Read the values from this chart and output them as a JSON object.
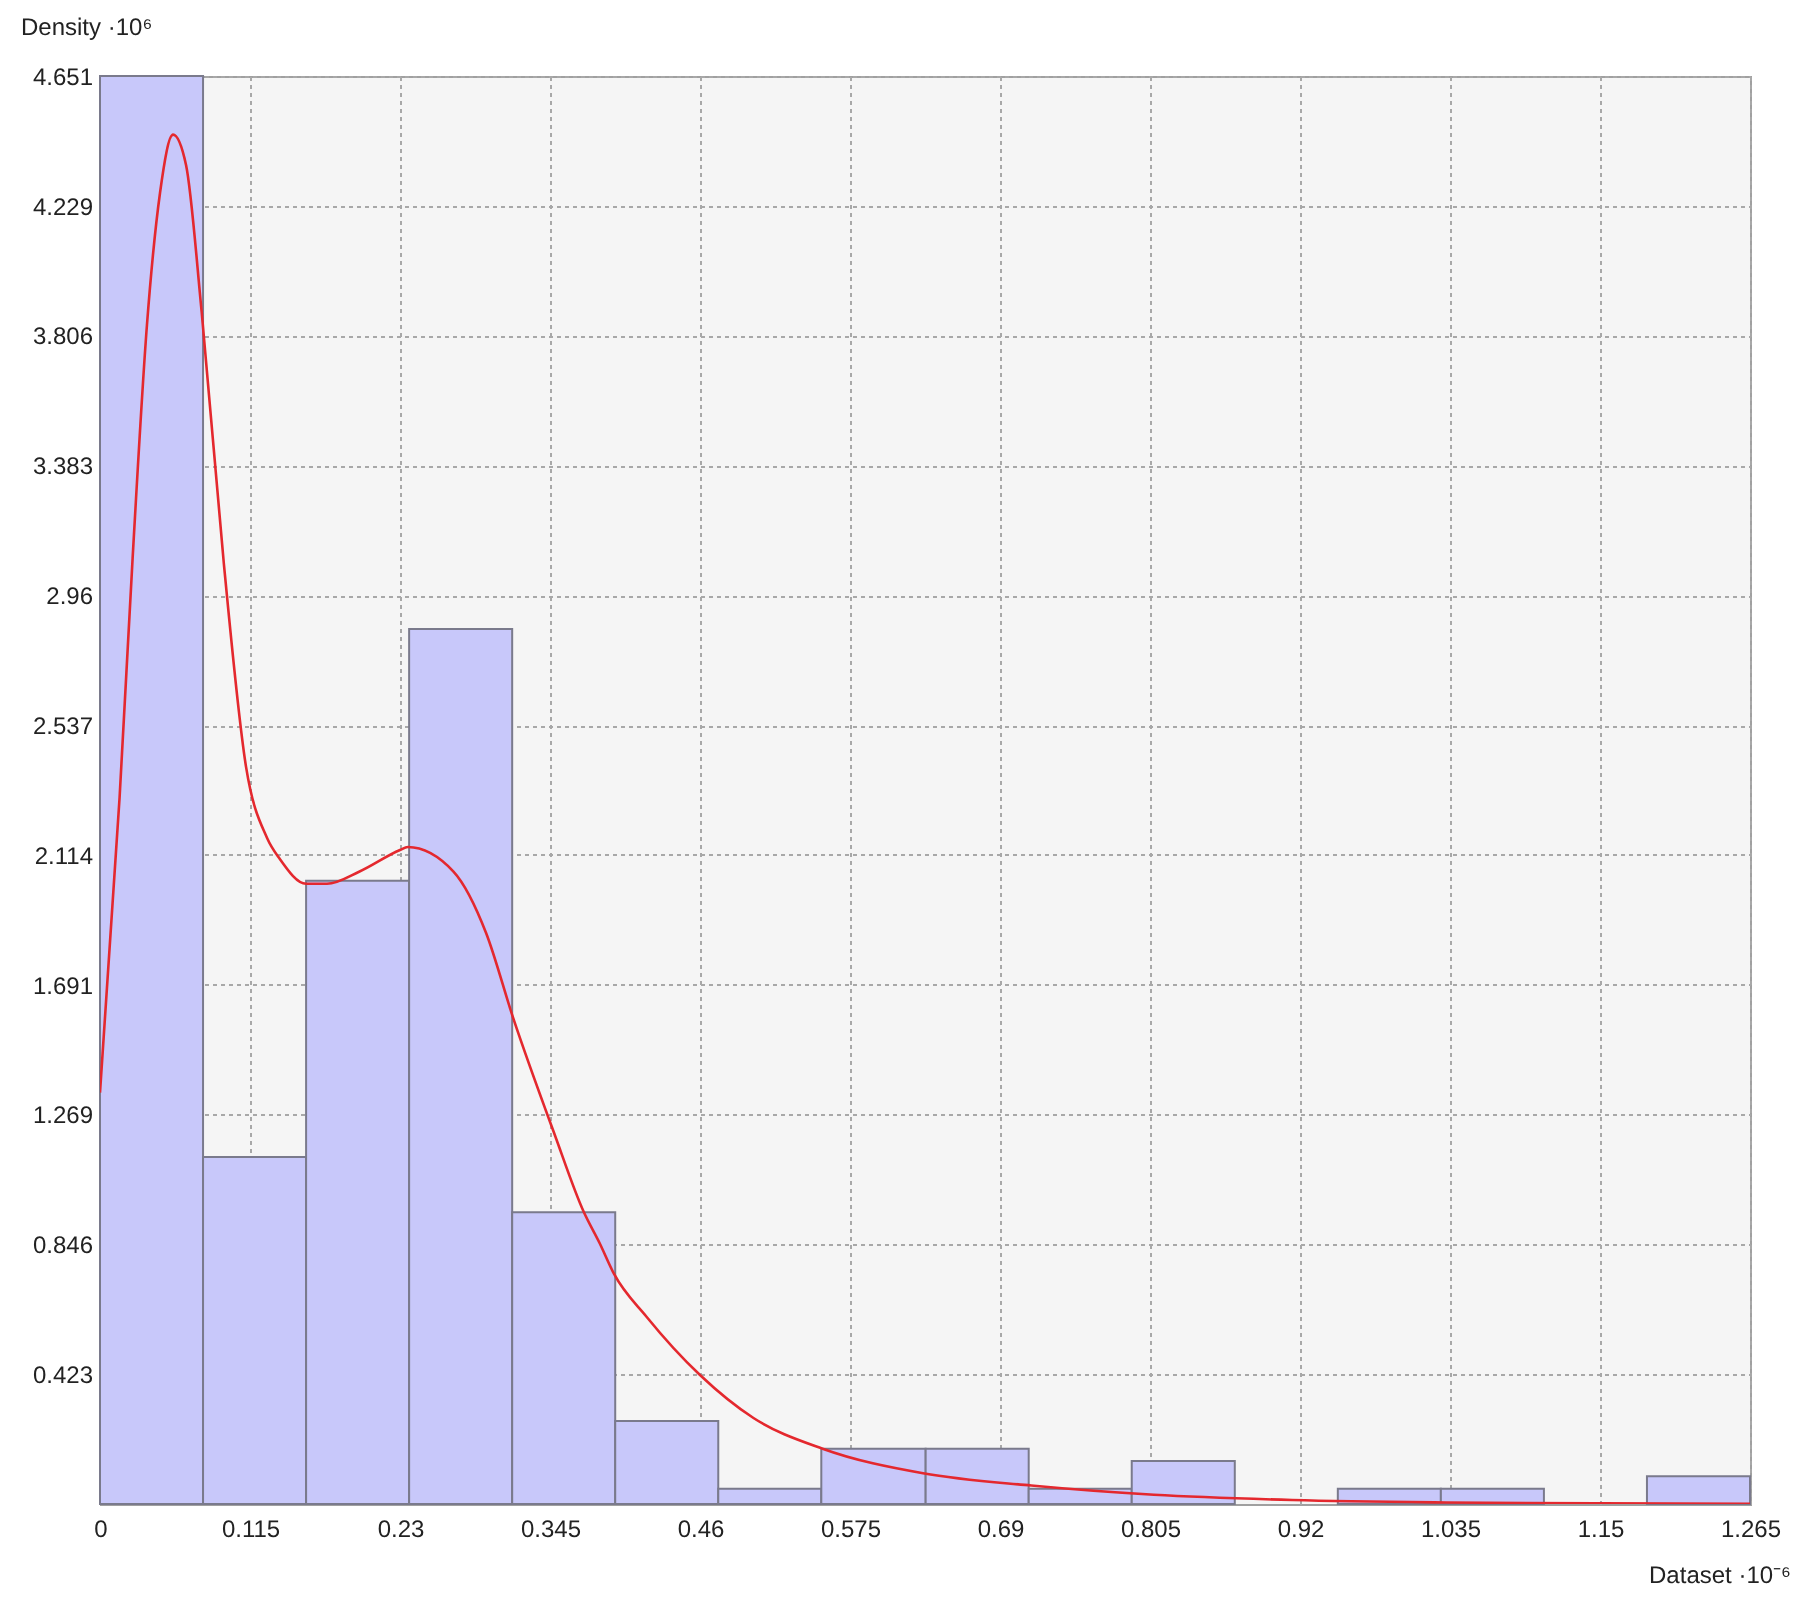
{
  "chart_data": {
    "type": "histogram",
    "xlabel": "Dataset ·10⁻⁶",
    "ylabel": "Density ·10⁶",
    "bins": [
      0,
      0.079,
      0.158,
      0.237,
      0.316,
      0.395,
      0.474,
      0.553,
      0.633,
      0.712,
      0.791,
      0.87,
      0.949,
      1.028,
      1.107,
      1.186,
      1.265
    ],
    "series": [
      {
        "color": "#c8c8fa",
        "values": [
          4.651,
          1.13,
          2.03,
          2.85,
          0.95,
          0.27,
          0.05,
          0.18,
          0.18,
          0.05,
          0.14,
          0,
          0.05,
          0.05,
          0,
          0.09
        ]
      },
      {
        "type": "line",
        "color": "#e4282e",
        "x": [
          0,
          0.015,
          0.025,
          0.036,
          0.046,
          0.056,
          0.066,
          0.078,
          0.095,
          0.112,
          0.128,
          0.138,
          0.158,
          0.174,
          0.199,
          0.23,
          0.236,
          0.271,
          0.296,
          0.317,
          0.348,
          0.371,
          0.383,
          0.394,
          0.419,
          0.46,
          0.501,
          0.554,
          0.631,
          0.714,
          0.808,
          0.914,
          1.032,
          1.15,
          1.265
        ],
        "values": [
          1.34,
          2.3,
          3.08,
          3.84,
          4.27,
          4.46,
          4.36,
          3.88,
          3.06,
          2.4,
          2.17,
          2.1,
          2.02,
          2.02,
          2.06,
          2.13,
          2.14,
          2.06,
          1.86,
          1.58,
          1.21,
          0.95,
          0.85,
          0.75,
          0.61,
          0.42,
          0.28,
          0.18,
          0.1,
          0.06,
          0.03,
          0.013,
          0.005,
          0.002,
          0.001
        ]
      }
    ],
    "xlim": [
      0,
      1.265
    ],
    "ylim": [
      0,
      4.651
    ],
    "xticks": [
      0,
      0.115,
      0.23,
      0.345,
      0.46,
      0.575,
      0.69,
      0.805,
      0.92,
      1.035,
      1.15,
      1.265
    ],
    "yticks": [
      0.423,
      0.846,
      1.269,
      1.691,
      2.114,
      2.537,
      2.96,
      3.383,
      3.806,
      4.229,
      4.651
    ],
    "grid": true
  }
}
